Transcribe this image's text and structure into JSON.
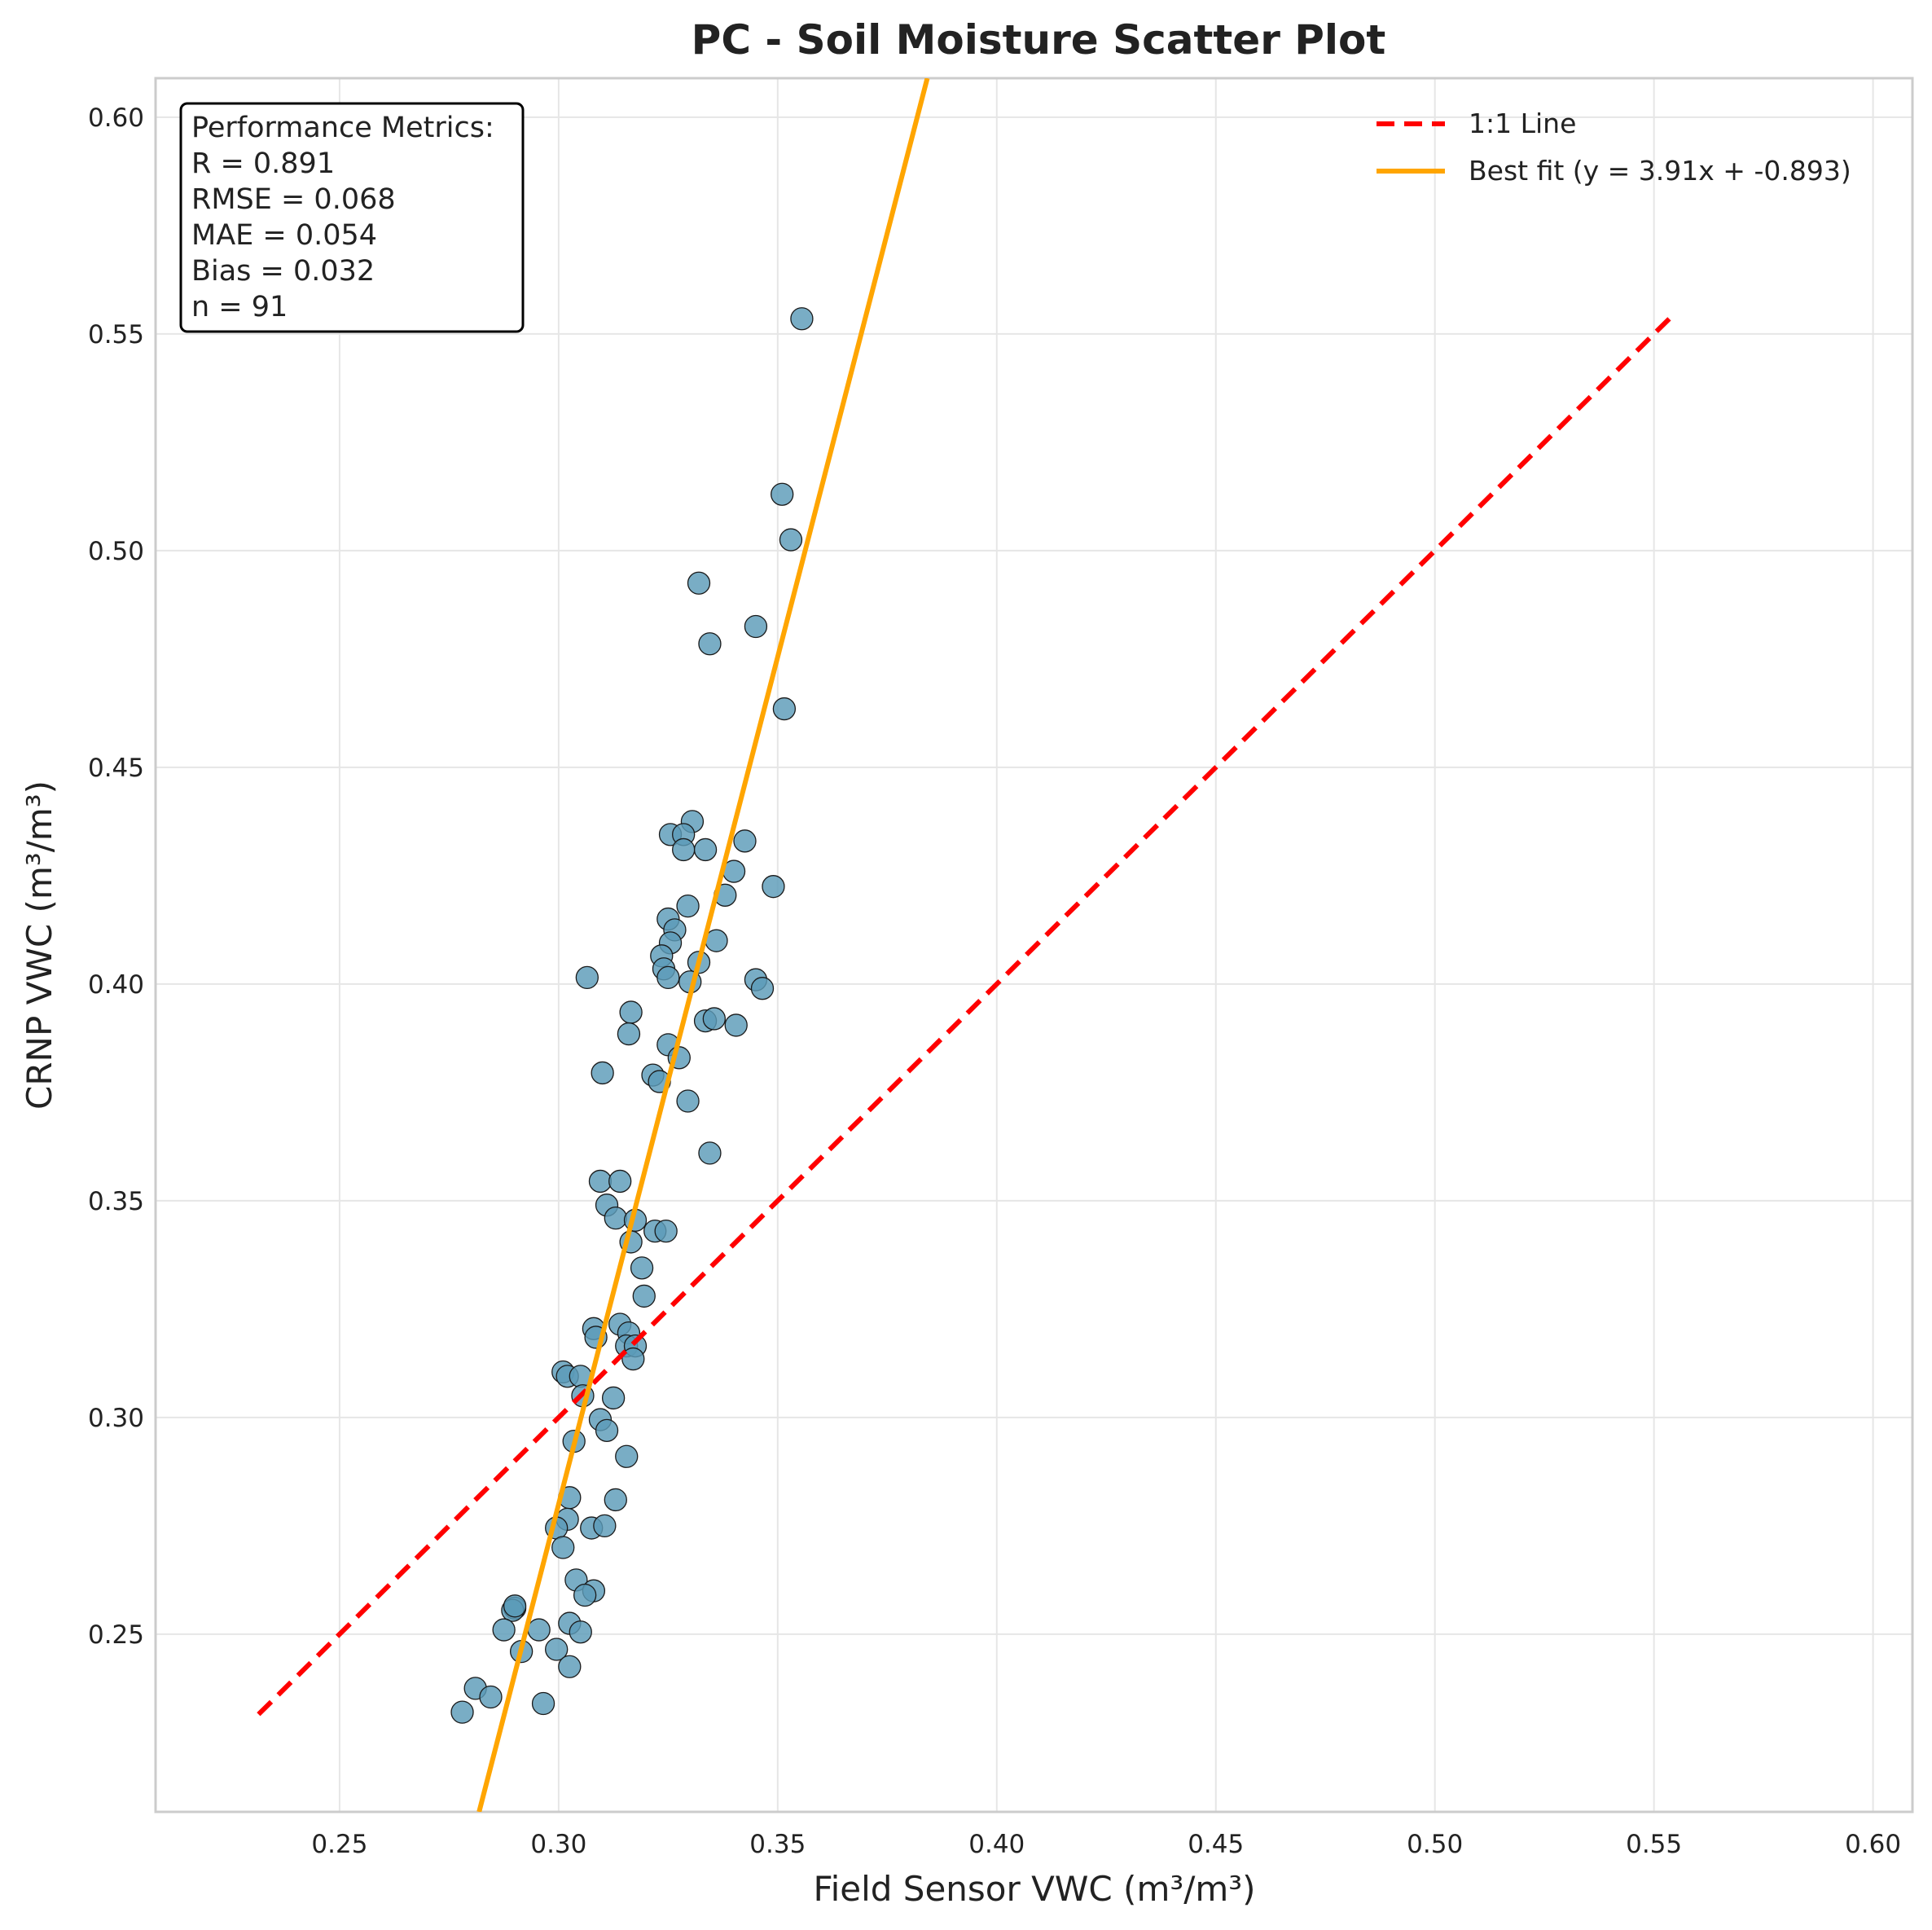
{
  "chart_data": {
    "type": "scatter",
    "title": "PC - Soil Moisture Scatter Plot",
    "xlabel": "Field Sensor VWC (m³/m³)",
    "ylabel": "CRNP VWC (m³/m³)",
    "xlim": [
      0.208,
      0.609
    ],
    "ylim": [
      0.209,
      0.609
    ],
    "xticks": [
      0.25,
      0.3,
      0.35,
      0.4,
      0.45,
      0.5,
      0.55,
      0.6
    ],
    "yticks": [
      0.25,
      0.3,
      0.35,
      0.4,
      0.45,
      0.5,
      0.55,
      0.6
    ],
    "xtick_labels": [
      "0.25",
      "0.30",
      "0.35",
      "0.40",
      "0.45",
      "0.50",
      "0.55",
      "0.60"
    ],
    "ytick_labels": [
      "0.25",
      "0.30",
      "0.35",
      "0.40",
      "0.45",
      "0.50",
      "0.55",
      "0.60"
    ],
    "grid": true,
    "legend_position": "top-right",
    "colors": {
      "points": "#5b9bb8",
      "point_edge": "#1a1a1a",
      "identity_line": "#ff0000",
      "fit_line": "#ffa500",
      "grid": "#e6e6e6",
      "frame": "#cccccc"
    },
    "series": [
      {
        "kind": "points",
        "points": [
          [
            0.3555,
            0.5535
          ],
          [
            0.351,
            0.513
          ],
          [
            0.353,
            0.5025
          ],
          [
            0.332,
            0.4925
          ],
          [
            0.345,
            0.4825
          ],
          [
            0.3345,
            0.4785
          ],
          [
            0.3515,
            0.4635
          ],
          [
            0.3305,
            0.4375
          ],
          [
            0.3255,
            0.4345
          ],
          [
            0.3285,
            0.4345
          ],
          [
            0.3285,
            0.431
          ],
          [
            0.3335,
            0.431
          ],
          [
            0.3425,
            0.433
          ],
          [
            0.34,
            0.426
          ],
          [
            0.349,
            0.4225
          ],
          [
            0.338,
            0.4205
          ],
          [
            0.3295,
            0.418
          ],
          [
            0.325,
            0.415
          ],
          [
            0.3265,
            0.4125
          ],
          [
            0.336,
            0.41
          ],
          [
            0.3255,
            0.4095
          ],
          [
            0.3235,
            0.4065
          ],
          [
            0.332,
            0.405
          ],
          [
            0.324,
            0.4035
          ],
          [
            0.325,
            0.4015
          ],
          [
            0.33,
            0.4005
          ],
          [
            0.3065,
            0.4015
          ],
          [
            0.345,
            0.401
          ],
          [
            0.3465,
            0.399
          ],
          [
            0.3165,
            0.3935
          ],
          [
            0.3335,
            0.3915
          ],
          [
            0.3355,
            0.392
          ],
          [
            0.3405,
            0.3905
          ],
          [
            0.316,
            0.3885
          ],
          [
            0.325,
            0.386
          ],
          [
            0.3275,
            0.383
          ],
          [
            0.31,
            0.3795
          ],
          [
            0.3215,
            0.379
          ],
          [
            0.323,
            0.3775
          ],
          [
            0.3295,
            0.373
          ],
          [
            0.3345,
            0.361
          ],
          [
            0.3095,
            0.3545
          ],
          [
            0.314,
            0.3545
          ],
          [
            0.311,
            0.349
          ],
          [
            0.313,
            0.346
          ],
          [
            0.3175,
            0.3455
          ],
          [
            0.322,
            0.343
          ],
          [
            0.3245,
            0.343
          ],
          [
            0.3165,
            0.3405
          ],
          [
            0.319,
            0.3345
          ],
          [
            0.3195,
            0.328
          ],
          [
            0.314,
            0.3215
          ],
          [
            0.308,
            0.3205
          ],
          [
            0.316,
            0.3195
          ],
          [
            0.3085,
            0.3185
          ],
          [
            0.3155,
            0.3165
          ],
          [
            0.3175,
            0.3165
          ],
          [
            0.317,
            0.3135
          ],
          [
            0.301,
            0.3105
          ],
          [
            0.302,
            0.3095
          ],
          [
            0.305,
            0.3095
          ],
          [
            0.3055,
            0.305
          ],
          [
            0.3125,
            0.3045
          ],
          [
            0.3095,
            0.2995
          ],
          [
            0.311,
            0.297
          ],
          [
            0.3035,
            0.2945
          ],
          [
            0.3155,
            0.291
          ],
          [
            0.3025,
            0.2815
          ],
          [
            0.313,
            0.281
          ],
          [
            0.302,
            0.2765
          ],
          [
            0.2995,
            0.2745
          ],
          [
            0.3075,
            0.2745
          ],
          [
            0.3105,
            0.275
          ],
          [
            0.301,
            0.27
          ],
          [
            0.304,
            0.2625
          ],
          [
            0.308,
            0.26
          ],
          [
            0.306,
            0.259
          ],
          [
            0.29,
            0.256
          ],
          [
            0.2895,
            0.2555
          ],
          [
            0.3025,
            0.2525
          ],
          [
            0.2875,
            0.251
          ],
          [
            0.2955,
            0.251
          ],
          [
            0.305,
            0.2505
          ],
          [
            0.2995,
            0.2465
          ],
          [
            0.2915,
            0.246
          ],
          [
            0.3025,
            0.2425
          ],
          [
            0.281,
            0.2375
          ],
          [
            0.2845,
            0.2355
          ],
          [
            0.2965,
            0.234
          ],
          [
            0.278,
            0.232
          ],
          [
            0.29,
            0.2565
          ]
        ]
      },
      {
        "kind": "line",
        "name": "1:1 Line",
        "style": "dashed",
        "points": [
          [
            0.2315,
            0.2315
          ],
          [
            0.5535,
            0.5535
          ]
        ]
      },
      {
        "kind": "line",
        "name": "Best fit (y = 3.91x + -0.893)",
        "style": "solid",
        "slope": 3.91,
        "intercept": -0.893
      }
    ],
    "metrics_box": {
      "lines": [
        "Performance Metrics:",
        "R = 0.891",
        "RMSE = 0.068",
        "MAE = 0.054",
        "Bias = 0.032",
        "n = 91"
      ],
      "position": "top-left"
    }
  }
}
